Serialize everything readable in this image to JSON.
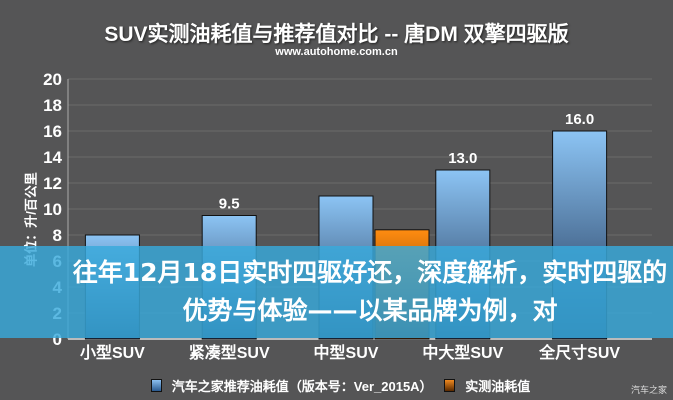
{
  "chart_data": {
    "type": "bar",
    "title": "SUV实测油耗值与推荐值对比 -- 唐DM 双擎四驱版",
    "subtitle": "www.autohome.com.cn",
    "xlabel": "",
    "ylabel": "单位：升/百公里",
    "ylim": [
      0,
      20
    ],
    "yticks": [
      0,
      2,
      4,
      6,
      8,
      10,
      12,
      14,
      16,
      18,
      20
    ],
    "grid": true,
    "legend_position": "bottom",
    "categories": [
      "小型SUV",
      "紧凑型SUV",
      "中型SUV",
      "中大型SUV",
      "全尺寸SUV"
    ],
    "series": [
      {
        "name": "汽车之家推荐油耗值（版本号：Ver_2015A）",
        "color": "#5b9bd5",
        "values": [
          8.0,
          9.5,
          11.0,
          13.0,
          16.0
        ]
      },
      {
        "name": "实测油耗值",
        "color": "#e87a10",
        "values": [
          null,
          null,
          8.4,
          null,
          null
        ]
      }
    ],
    "data_labels": [
      "",
      "9.5",
      "",
      "13.0",
      "16.0"
    ]
  },
  "overlay": {
    "headline": "往年12月18日实时四驱好还，深度解析，实时四驱的优势与体验——以某品牌为例，对",
    "watermark": "汽车之家",
    "color": "#38aadc"
  }
}
